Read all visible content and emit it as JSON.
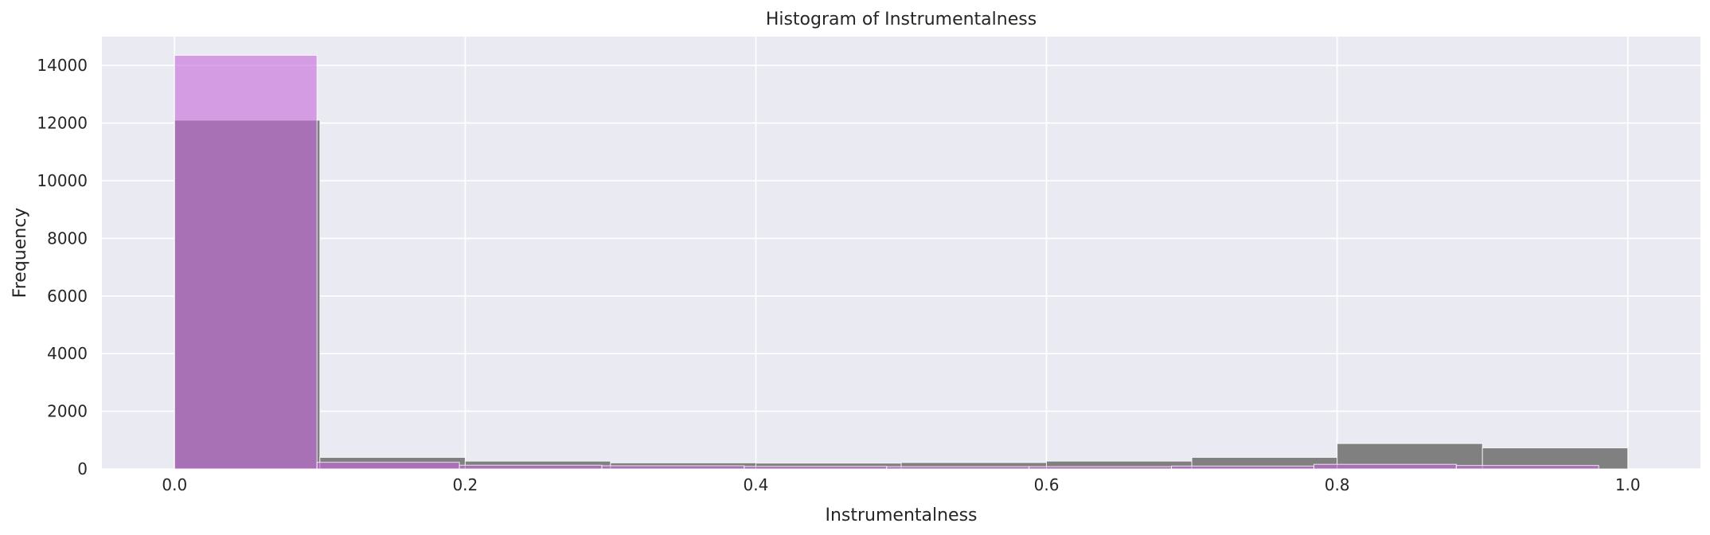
{
  "chart_data": {
    "type": "bar",
    "title": "Histogram of Instrumentalness",
    "xlabel": "Instrumentalness",
    "ylabel": "Frequency",
    "xlim": [
      -0.05,
      1.05
    ],
    "ylim": [
      0,
      15000
    ],
    "x_ticks": [
      "0.0",
      "0.2",
      "0.4",
      "0.6",
      "0.8",
      "1.0"
    ],
    "y_ticks": [
      "0",
      "2000",
      "4000",
      "6000",
      "8000",
      "10000",
      "12000",
      "14000"
    ],
    "grid": true,
    "legend": "none",
    "series": [
      {
        "color": "#808080",
        "opacity": 1.0,
        "bins": [
          {
            "x0": 0.0,
            "x1": 0.1,
            "value": 12100
          },
          {
            "x0": 0.1,
            "x1": 0.2,
            "value": 400
          },
          {
            "x0": 0.2,
            "x1": 0.3,
            "value": 270
          },
          {
            "x0": 0.3,
            "x1": 0.4,
            "value": 210
          },
          {
            "x0": 0.4,
            "x1": 0.5,
            "value": 200
          },
          {
            "x0": 0.5,
            "x1": 0.6,
            "value": 220
          },
          {
            "x0": 0.6,
            "x1": 0.7,
            "value": 270
          },
          {
            "x0": 0.7,
            "x1": 0.8,
            "value": 400
          },
          {
            "x0": 0.8,
            "x1": 0.9,
            "value": 880
          },
          {
            "x0": 0.9,
            "x1": 1.0,
            "value": 730
          }
        ]
      },
      {
        "color": "#c467d8",
        "opacity": 0.6,
        "bins": [
          {
            "x0": 0.0,
            "x1": 0.098,
            "value": 14350
          },
          {
            "x0": 0.098,
            "x1": 0.196,
            "value": 230
          },
          {
            "x0": 0.196,
            "x1": 0.294,
            "value": 130
          },
          {
            "x0": 0.294,
            "x1": 0.392,
            "value": 110
          },
          {
            "x0": 0.392,
            "x1": 0.49,
            "value": 90
          },
          {
            "x0": 0.49,
            "x1": 0.588,
            "value": 80
          },
          {
            "x0": 0.588,
            "x1": 0.686,
            "value": 80
          },
          {
            "x0": 0.686,
            "x1": 0.784,
            "value": 100
          },
          {
            "x0": 0.784,
            "x1": 0.882,
            "value": 160
          },
          {
            "x0": 0.882,
            "x1": 0.98,
            "value": 120
          }
        ]
      }
    ]
  },
  "style": {
    "plot_background": "#eaeaf2",
    "grid_color": "#ffffff",
    "text_color": "#262626"
  }
}
